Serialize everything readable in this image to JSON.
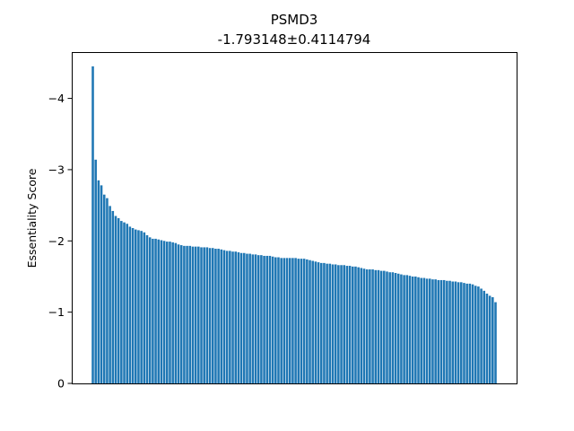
{
  "chart_data": {
    "type": "bar",
    "title": "PSMD3",
    "subtitle": "-1.793148±0.4114794",
    "xlabel": "",
    "ylabel": "Essentiality Score",
    "ylim": [
      0,
      -4.65
    ],
    "y_ticks": [
      0,
      -1,
      -2,
      -3,
      -4
    ],
    "y_tick_labels": [
      "0",
      "−1",
      "−2",
      "−3",
      "−4"
    ],
    "inverted_y": true,
    "grid": false,
    "bar_color": "#1f77b4",
    "values": [
      -4.45,
      -3.14,
      -2.85,
      -2.78,
      -2.65,
      -2.6,
      -2.49,
      -2.42,
      -2.35,
      -2.32,
      -2.28,
      -2.26,
      -2.24,
      -2.2,
      -2.18,
      -2.16,
      -2.15,
      -2.14,
      -2.12,
      -2.08,
      -2.05,
      -2.03,
      -2.03,
      -2.02,
      -2.01,
      -2.0,
      -1.99,
      -1.99,
      -1.98,
      -1.97,
      -1.95,
      -1.94,
      -1.93,
      -1.93,
      -1.93,
      -1.92,
      -1.92,
      -1.92,
      -1.91,
      -1.91,
      -1.91,
      -1.9,
      -1.9,
      -1.89,
      -1.89,
      -1.88,
      -1.87,
      -1.86,
      -1.86,
      -1.85,
      -1.85,
      -1.84,
      -1.83,
      -1.83,
      -1.82,
      -1.82,
      -1.81,
      -1.81,
      -1.8,
      -1.8,
      -1.79,
      -1.79,
      -1.79,
      -1.78,
      -1.77,
      -1.77,
      -1.76,
      -1.76,
      -1.76,
      -1.76,
      -1.76,
      -1.76,
      -1.75,
      -1.75,
      -1.75,
      -1.74,
      -1.73,
      -1.72,
      -1.71,
      -1.7,
      -1.69,
      -1.69,
      -1.68,
      -1.68,
      -1.67,
      -1.67,
      -1.66,
      -1.66,
      -1.66,
      -1.65,
      -1.65,
      -1.64,
      -1.64,
      -1.63,
      -1.62,
      -1.61,
      -1.6,
      -1.6,
      -1.6,
      -1.59,
      -1.59,
      -1.58,
      -1.58,
      -1.57,
      -1.56,
      -1.56,
      -1.55,
      -1.54,
      -1.53,
      -1.52,
      -1.52,
      -1.51,
      -1.5,
      -1.5,
      -1.49,
      -1.48,
      -1.48,
      -1.47,
      -1.47,
      -1.46,
      -1.46,
      -1.45,
      -1.45,
      -1.45,
      -1.44,
      -1.44,
      -1.43,
      -1.43,
      -1.42,
      -1.42,
      -1.41,
      -1.4,
      -1.4,
      -1.39,
      -1.37,
      -1.36,
      -1.33,
      -1.3,
      -1.26,
      -1.23,
      -1.21,
      -1.14
    ]
  }
}
